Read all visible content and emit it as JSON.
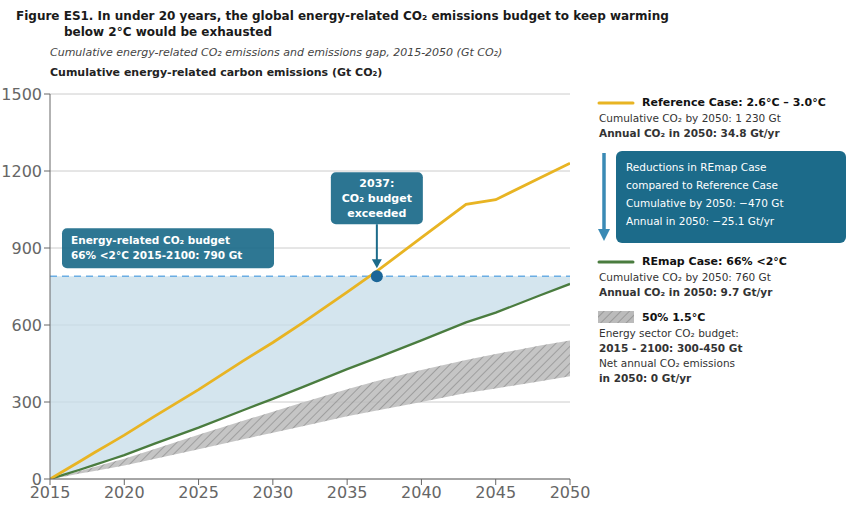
{
  "chart_data": {
    "type": "line",
    "title": [
      "Figure ES1.  In under 20 years, the global energy-related CO₂ emissions budget to keep warming",
      "below 2°C would be exhausted"
    ],
    "subtitle": "Cumulative energy-related CO₂ emissions and emissions gap, 2015-2050 (Gt CO₂)",
    "y_label": "Cumulative energy-related carbon emissions (Gt CO₂)",
    "x": [
      2015,
      2016,
      2017,
      2018,
      2019,
      2020,
      2022,
      2025,
      2028,
      2030,
      2032,
      2035,
      2037,
      2040,
      2043,
      2045,
      2048,
      2050
    ],
    "series": [
      {
        "name": "Reference Case: 2.6°C – 3.0°C",
        "color": "#e8b423",
        "values": [
          0,
          34,
          68,
          103,
          137,
          171,
          243,
          348,
          460,
          532,
          608,
          728,
          810,
          940,
          1070,
          1088,
          1174,
          1230
        ],
        "description": [
          "Cumulative CO₂ by 2050: 1 230 Gt",
          "Annual CO₂ in 2050: 34.8 Gt/yr"
        ]
      },
      {
        "name": "REmap Case: 66% <2°C",
        "color": "#4a7c3f",
        "values": [
          0,
          18,
          36,
          55,
          74,
          93,
          137,
          200,
          268,
          312,
          358,
          428,
          472,
          540,
          610,
          648,
          716,
          760
        ],
        "description": [
          "Cumulative CO₂ by 2050: 760 Gt",
          "Annual CO₂ in 2050: 9.7 Gt/yr"
        ]
      }
    ],
    "band": {
      "name": "50% 1.5°C",
      "color": "#bbbbbb",
      "hatch_color": "#777777",
      "lower": [
        0,
        10,
        21,
        31,
        42,
        53,
        78,
        116,
        155,
        180,
        206,
        244,
        267,
        300,
        335,
        353,
        381,
        400
      ],
      "upper": [
        0,
        15,
        31,
        47,
        63,
        79,
        116,
        172,
        227,
        262,
        298,
        350,
        382,
        425,
        464,
        487,
        520,
        540
      ],
      "description": [
        "Energy sector CO₂ budget:",
        "2015 - 2100: 300-450 Gt",
        "Net annual CO₂ emissions",
        "in 2050: 0 Gt/yr"
      ]
    },
    "budget": {
      "value": 790,
      "year": 2037,
      "color": "#1b6698",
      "line_color": "#6aade4",
      "fill_color": "#c5dce8"
    },
    "annotations": [
      {
        "text": [
          "Energy-related CO₂ budget",
          "66% <2°C 2015-2100: 790 Gt"
        ],
        "color": "#1c6b8a"
      },
      {
        "text": [
          "2037:",
          "CO₂ budget",
          "exceeded"
        ],
        "color": "#1c6b8a"
      },
      {
        "text": [
          "Reductions in REmap Case",
          "compared to Reference Case",
          "Cumulative by 2050: −470 Gt",
          "Annual in 2050: −25.1 Gt/yr"
        ],
        "color": "#1c6b8a",
        "arrow_color": "#3a8ab5"
      }
    ],
    "xlim": [
      2015,
      2050
    ],
    "ylim": [
      0,
      1500
    ],
    "xticks": [
      2015,
      2020,
      2025,
      2030,
      2035,
      2040,
      2045,
      2050
    ],
    "yticks": [
      0,
      300,
      600,
      900,
      1200,
      1500
    ],
    "grid": true
  }
}
